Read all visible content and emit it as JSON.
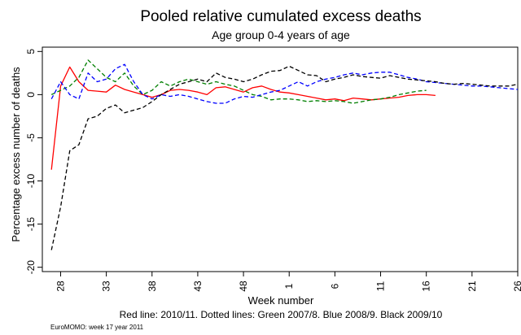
{
  "chart_data": {
    "type": "line",
    "title": "Pooled relative cumulated excess deaths",
    "subtitle": "Age group 0-4 years of age",
    "xlabel": "Week number",
    "ylabel": "Percentage excess number of deaths",
    "xlim": [
      26,
      78
    ],
    "ylim": [
      -20.5,
      5.5
    ],
    "x_ticks": [
      {
        "pos": 28,
        "label": "28"
      },
      {
        "pos": 33,
        "label": "33"
      },
      {
        "pos": 38,
        "label": "38"
      },
      {
        "pos": 43,
        "label": "43"
      },
      {
        "pos": 48,
        "label": "48"
      },
      {
        "pos": 53,
        "label": "1"
      },
      {
        "pos": 58,
        "label": "6"
      },
      {
        "pos": 63,
        "label": "11"
      },
      {
        "pos": 68,
        "label": "16"
      },
      {
        "pos": 73,
        "label": "21"
      },
      {
        "pos": 78,
        "label": "26"
      }
    ],
    "y_ticks": [
      {
        "value": 5,
        "label": "5"
      },
      {
        "value": 0,
        "label": "0"
      },
      {
        "value": -5,
        "label": "-5"
      },
      {
        "value": -10,
        "label": "-10"
      },
      {
        "value": -15,
        "label": "-15"
      },
      {
        "value": -20,
        "label": "-20"
      }
    ],
    "grid": false,
    "series": [
      {
        "color": "#ff0000",
        "dashed": false,
        "x": [
          27,
          28,
          29,
          30,
          31,
          32,
          33,
          34,
          35,
          36,
          37,
          38,
          39,
          40,
          41,
          42,
          43,
          44,
          45,
          46,
          47,
          48,
          49,
          50,
          51,
          52,
          53,
          54,
          55,
          56,
          57,
          58,
          59,
          60,
          61,
          62,
          63,
          64,
          65,
          66,
          67,
          68,
          69
        ],
        "y": [
          -8.7,
          1.0,
          3.2,
          1.5,
          0.5,
          0.4,
          0.3,
          1.1,
          0.6,
          0.3,
          0.0,
          -0.3,
          0.0,
          0.5,
          0.6,
          0.5,
          0.3,
          0.0,
          0.8,
          0.9,
          0.6,
          0.3,
          0.8,
          1.0,
          0.6,
          0.3,
          0.2,
          0.0,
          -0.2,
          -0.4,
          -0.6,
          -0.5,
          -0.7,
          -0.4,
          -0.5,
          -0.6,
          -0.5,
          -0.4,
          -0.3,
          -0.1,
          0.0,
          0.0,
          -0.1
        ]
      },
      {
        "color": "#007f00",
        "dashed": true,
        "x": [
          27,
          28,
          29,
          30,
          31,
          32,
          33,
          34,
          35,
          36,
          37,
          38,
          39,
          40,
          41,
          42,
          43,
          44,
          45,
          46,
          47,
          48,
          49,
          50,
          51,
          52,
          53,
          54,
          55,
          56,
          57,
          58,
          59,
          60,
          61,
          62,
          63,
          64,
          65,
          66,
          67,
          68
        ],
        "y": [
          0.0,
          0.5,
          1.0,
          2.0,
          4.0,
          3.0,
          2.0,
          1.5,
          2.5,
          1.0,
          0.0,
          0.5,
          1.5,
          1.0,
          1.5,
          1.8,
          1.5,
          1.2,
          1.5,
          1.2,
          1.0,
          0.5,
          0.0,
          -0.2,
          -0.6,
          -0.5,
          -0.5,
          -0.6,
          -0.8,
          -0.7,
          -0.8,
          -0.7,
          -0.8,
          -1.0,
          -0.8,
          -0.6,
          -0.5,
          -0.3,
          0.0,
          0.2,
          0.4,
          0.5
        ]
      },
      {
        "color": "#0000ff",
        "dashed": true,
        "x": [
          27,
          28,
          29,
          30,
          31,
          32,
          33,
          34,
          35,
          36,
          37,
          38,
          39,
          40,
          41,
          42,
          43,
          44,
          45,
          46,
          47,
          48,
          49,
          50,
          51,
          52,
          53,
          54,
          55,
          56,
          57,
          58,
          59,
          60,
          61,
          62,
          63,
          64,
          65,
          66,
          67,
          68,
          69,
          70,
          71,
          72,
          73,
          74,
          75,
          76,
          77,
          78
        ],
        "y": [
          -0.5,
          1.5,
          0.0,
          -0.5,
          2.5,
          1.5,
          1.8,
          3.0,
          3.5,
          1.5,
          0.0,
          -0.5,
          0.0,
          -0.2,
          0.0,
          -0.2,
          -0.5,
          -0.8,
          -1.0,
          -1.0,
          -0.5,
          -0.2,
          -0.3,
          0.0,
          0.3,
          0.5,
          1.0,
          1.5,
          1.0,
          1.5,
          1.8,
          2.0,
          2.3,
          2.5,
          2.3,
          2.5,
          2.6,
          2.6,
          2.3,
          2.0,
          1.8,
          1.5,
          1.4,
          1.3,
          1.2,
          1.1,
          1.0,
          1.0,
          0.9,
          0.8,
          0.7,
          0.6
        ]
      },
      {
        "color": "#000000",
        "dashed": true,
        "x": [
          27,
          28,
          29,
          30,
          31,
          32,
          33,
          34,
          35,
          36,
          37,
          38,
          39,
          40,
          41,
          42,
          43,
          44,
          45,
          46,
          47,
          48,
          49,
          50,
          51,
          52,
          53,
          54,
          55,
          56,
          57,
          58,
          59,
          60,
          61,
          62,
          63,
          64,
          65,
          66,
          67,
          68,
          69,
          70,
          71,
          72,
          73,
          74,
          75,
          76,
          77,
          78
        ],
        "y": [
          -18.0,
          -13.0,
          -6.5,
          -5.8,
          -2.8,
          -2.5,
          -1.6,
          -1.2,
          -2.1,
          -1.8,
          -1.5,
          -0.8,
          0.0,
          0.6,
          1.2,
          1.5,
          1.8,
          1.5,
          2.5,
          2.0,
          1.8,
          1.5,
          1.8,
          2.3,
          2.7,
          2.8,
          3.3,
          2.8,
          2.3,
          2.2,
          1.5,
          1.8,
          2.0,
          2.3,
          2.1,
          2.0,
          1.9,
          2.2,
          2.0,
          1.8,
          1.7,
          1.6,
          1.5,
          1.3,
          1.2,
          1.3,
          1.2,
          1.1,
          1.0,
          1.0,
          1.0,
          1.2
        ]
      }
    ],
    "caption": "Red line: 2010/11. Dotted lines: Green 2007/8. Blue 2008/9. Black 2009/10",
    "footer": "EuroMOMO: week 17 year 2011"
  }
}
